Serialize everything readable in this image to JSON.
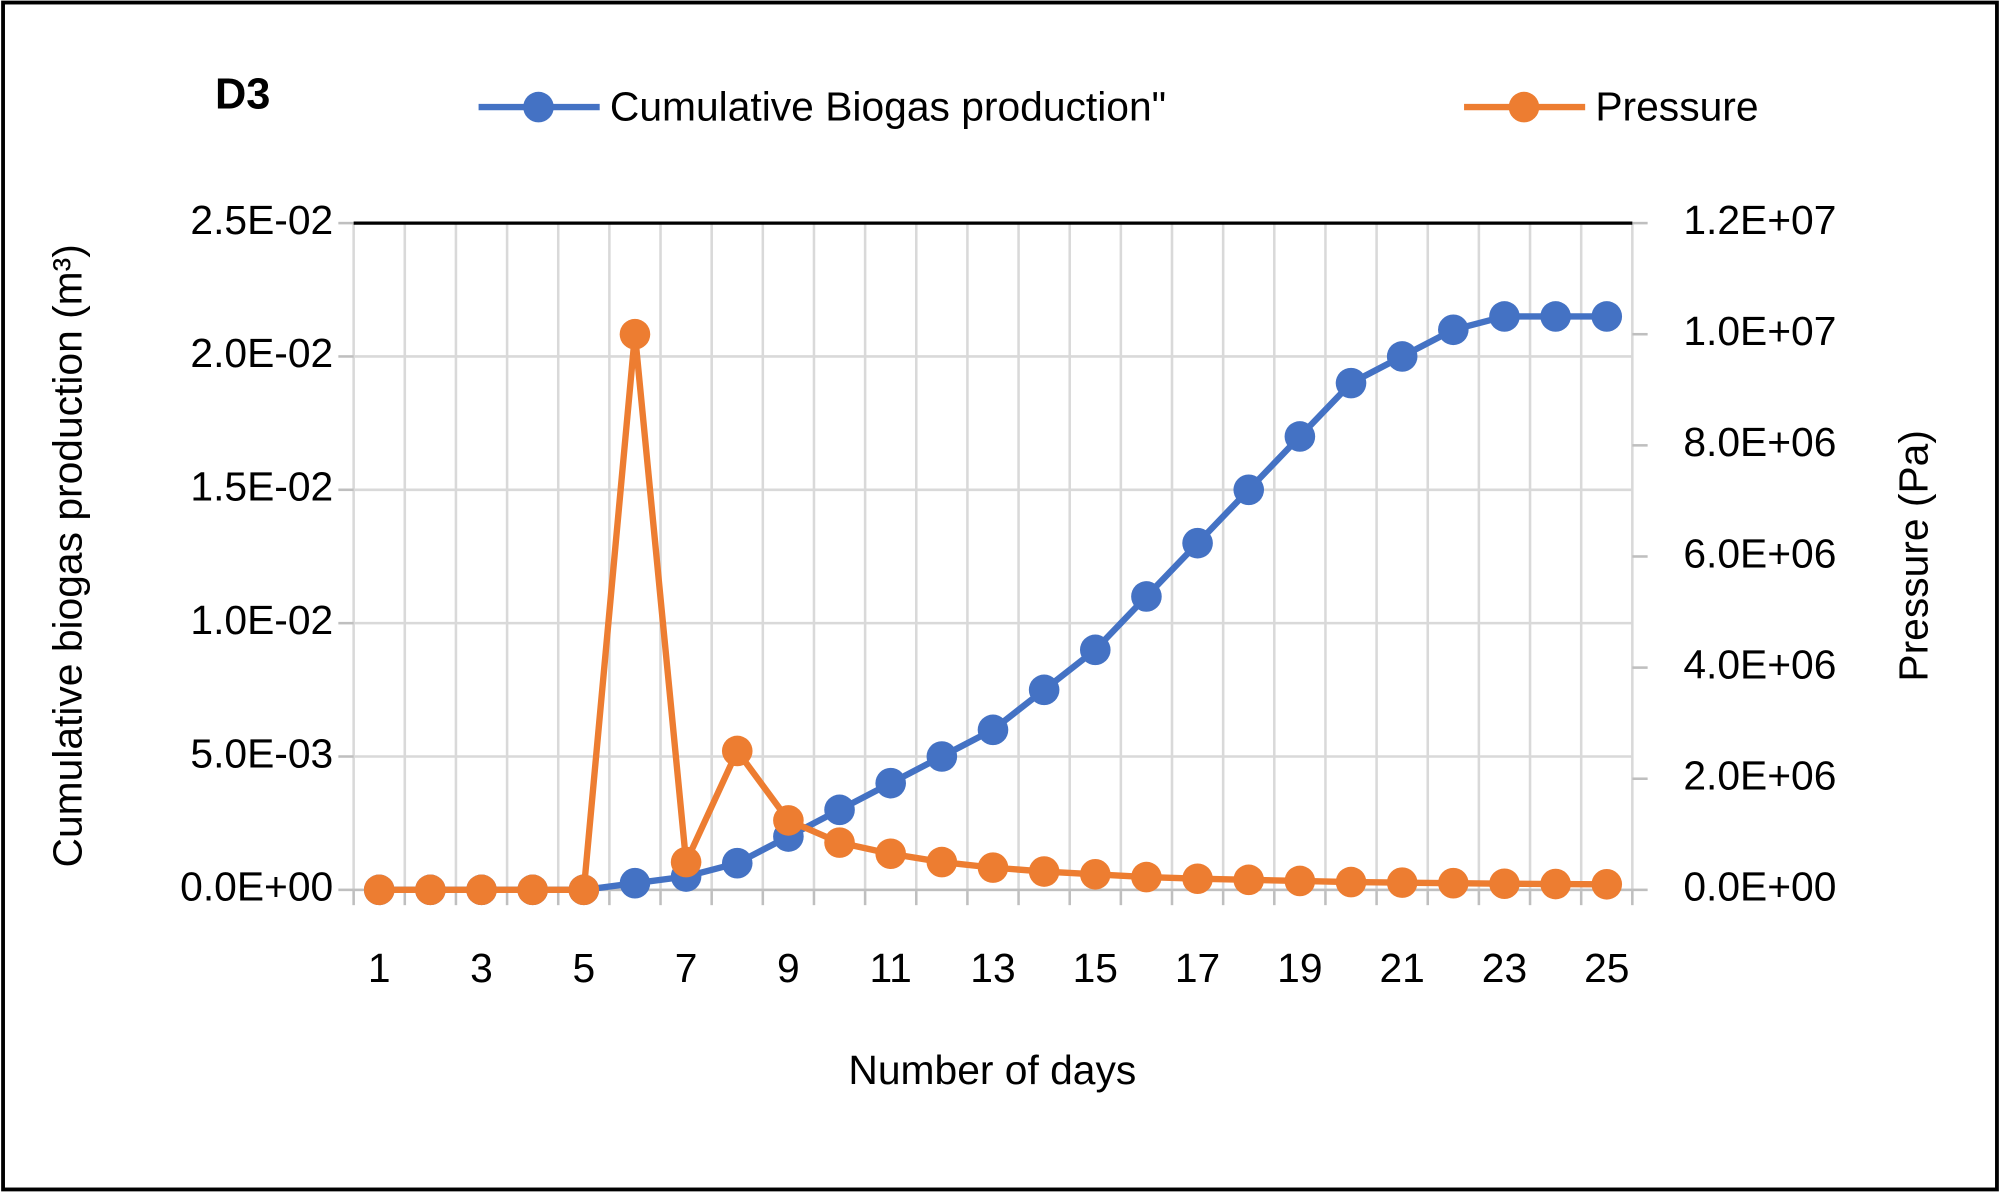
{
  "chart_data": {
    "type": "line",
    "title": "D3",
    "x_label": "Number of days",
    "y_label": "Cumulative biogas production (m³)",
    "y2_label": "Pressure (Pa)",
    "categories": [
      1,
      null,
      3,
      null,
      5,
      null,
      7,
      null,
      9,
      null,
      11,
      null,
      13,
      null,
      15,
      null,
      17,
      null,
      19,
      null,
      21,
      null,
      23,
      null,
      25
    ],
    "series": [
      {
        "name": "Cumulative Biogas production\"",
        "color": "#4472c4",
        "axis": "y",
        "values": [
          0,
          0,
          0,
          0,
          0,
          0.00025,
          0.0005,
          0.001,
          0.002,
          0.003,
          0.004,
          0.005,
          0.006,
          0.0075,
          0.009,
          0.011,
          0.013,
          0.015,
          0.017,
          0.019,
          0.02,
          0.021,
          0.0215,
          0.0215,
          0.0215
        ]
      },
      {
        "name": "Pressure",
        "color": "#ed7d31",
        "axis": "y2",
        "values": [
          0,
          0,
          0,
          0,
          0,
          10000000,
          500000,
          2500000,
          1250000,
          850000,
          650000,
          500000,
          400000,
          330000,
          280000,
          230000,
          200000,
          180000,
          160000,
          140000,
          130000,
          120000,
          110000,
          105000,
          100000
        ]
      }
    ],
    "ylim": [
      0,
      0.025
    ],
    "yticks": [
      {
        "value": 0,
        "label": "0.0E+00"
      },
      {
        "value": 0.005,
        "label": "5.0E-03"
      },
      {
        "value": 0.01,
        "label": "1.0E-02"
      },
      {
        "value": 0.015,
        "label": "1.5E-02"
      },
      {
        "value": 0.02,
        "label": "2.0E-02"
      },
      {
        "value": 0.025,
        "label": "2.5E-02"
      }
    ],
    "y2lim": [
      0,
      12000000
    ],
    "y2ticks": [
      {
        "value": 0,
        "label": "0.0E+00"
      },
      {
        "value": 2000000,
        "label": "2.0E+06"
      },
      {
        "value": 4000000,
        "label": "4.0E+06"
      },
      {
        "value": 6000000,
        "label": "6.0E+06"
      },
      {
        "value": 8000000,
        "label": "8.0E+06"
      },
      {
        "value": 10000000,
        "label": "1.0E+07"
      },
      {
        "value": 12000000,
        "label": "1.2E+07"
      }
    ],
    "grid": true,
    "legend": "top"
  }
}
